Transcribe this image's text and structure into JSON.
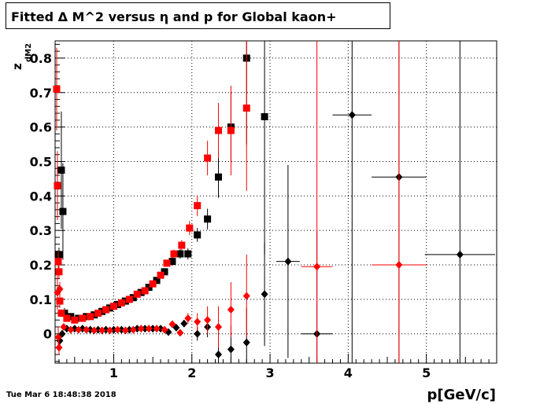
{
  "chart_data": {
    "type": "scatter",
    "title": "Fitted Δ M^2 versus η and p for Global kaon+",
    "xlabel": "p[GeV/c]",
    "ylabel": "z",
    "ylabel_exponent": "dM2",
    "xlim": [
      0.25,
      5.9
    ],
    "ylim": [
      -0.085,
      0.85
    ],
    "x_ticks": [
      1,
      2,
      3,
      4,
      5
    ],
    "y_ticks": [
      0,
      0.1,
      0.2,
      0.3,
      0.4,
      0.5,
      0.6,
      0.7,
      0.8
    ],
    "grid": true,
    "series": [
      {
        "marker": "square",
        "color": "#000000",
        "points": [
          {
            "x": 0.3,
            "y": 0.23,
            "e": 0.02
          },
          {
            "x": 0.33,
            "y": 0.475,
            "e": 0.17
          },
          {
            "x": 0.35,
            "y": 0.355,
            "e": 0.14
          },
          {
            "x": 0.37,
            "y": 0.06,
            "e": 0.015
          },
          {
            "x": 0.45,
            "y": 0.05,
            "e": 0.006
          },
          {
            "x": 0.55,
            "y": 0.045,
            "e": 0.005
          },
          {
            "x": 0.65,
            "y": 0.05,
            "e": 0.005
          },
          {
            "x": 0.75,
            "y": 0.055,
            "e": 0.005
          },
          {
            "x": 0.85,
            "y": 0.065,
            "e": 0.005
          },
          {
            "x": 0.95,
            "y": 0.075,
            "e": 0.005
          },
          {
            "x": 1.05,
            "y": 0.085,
            "e": 0.005
          },
          {
            "x": 1.15,
            "y": 0.095,
            "e": 0.005
          },
          {
            "x": 1.25,
            "y": 0.105,
            "e": 0.005
          },
          {
            "x": 1.35,
            "y": 0.12,
            "e": 0.006
          },
          {
            "x": 1.45,
            "y": 0.135,
            "e": 0.007
          },
          {
            "x": 1.55,
            "y": 0.155,
            "e": 0.008
          },
          {
            "x": 1.65,
            "y": 0.18,
            "e": 0.01
          },
          {
            "x": 1.75,
            "y": 0.21,
            "e": 0.012
          },
          {
            "x": 1.85,
            "y": 0.232,
            "e": 0.014
          },
          {
            "x": 1.95,
            "y": 0.232,
            "e": 0.016
          },
          {
            "x": 2.07,
            "y": 0.287,
            "e": 0.02
          },
          {
            "x": 2.2,
            "y": 0.333,
            "e": 0.03
          },
          {
            "x": 2.34,
            "y": 0.455,
            "e": 0.06
          },
          {
            "x": 2.5,
            "y": 0.6,
            "e": 0.1
          },
          {
            "x": 2.7,
            "y": 0.8,
            "e": 0.25
          },
          {
            "x": 2.93,
            "y": 0.63,
            "e": 0.4
          }
        ]
      },
      {
        "marker": "square",
        "color": "#ff0000",
        "points": [
          {
            "x": 0.27,
            "y": 0.71,
            "e": 0.12
          },
          {
            "x": 0.28,
            "y": 0.43,
            "e": 0.1
          },
          {
            "x": 0.29,
            "y": 0.21,
            "e": 0.03
          },
          {
            "x": 0.3,
            "y": 0.18,
            "e": 0.02
          },
          {
            "x": 0.31,
            "y": 0.095,
            "e": 0.02
          },
          {
            "x": 0.33,
            "y": 0.06,
            "e": 0.01
          },
          {
            "x": 0.4,
            "y": 0.045,
            "e": 0.005
          },
          {
            "x": 0.5,
            "y": 0.04,
            "e": 0.005
          },
          {
            "x": 0.6,
            "y": 0.045,
            "e": 0.005
          },
          {
            "x": 0.7,
            "y": 0.05,
            "e": 0.005
          },
          {
            "x": 0.8,
            "y": 0.06,
            "e": 0.005
          },
          {
            "x": 0.9,
            "y": 0.07,
            "e": 0.005
          },
          {
            "x": 1.0,
            "y": 0.08,
            "e": 0.005
          },
          {
            "x": 1.1,
            "y": 0.09,
            "e": 0.005
          },
          {
            "x": 1.2,
            "y": 0.1,
            "e": 0.005
          },
          {
            "x": 1.3,
            "y": 0.115,
            "e": 0.006
          },
          {
            "x": 1.4,
            "y": 0.125,
            "e": 0.007
          },
          {
            "x": 1.5,
            "y": 0.145,
            "e": 0.008
          },
          {
            "x": 1.6,
            "y": 0.17,
            "e": 0.009
          },
          {
            "x": 1.68,
            "y": 0.205,
            "e": 0.01
          },
          {
            "x": 1.77,
            "y": 0.232,
            "e": 0.012
          },
          {
            "x": 1.87,
            "y": 0.257,
            "e": 0.015
          },
          {
            "x": 1.97,
            "y": 0.307,
            "e": 0.02
          },
          {
            "x": 2.07,
            "y": 0.372,
            "e": 0.03
          },
          {
            "x": 2.2,
            "y": 0.51,
            "e": 0.05
          },
          {
            "x": 2.34,
            "y": 0.59,
            "e": 0.08
          },
          {
            "x": 2.5,
            "y": 0.59,
            "e": 0.13
          },
          {
            "x": 2.7,
            "y": 0.655,
            "e": 0.24
          }
        ]
      },
      {
        "marker": "diamond",
        "color": "#000000",
        "points": [
          {
            "x": 0.31,
            "y": -0.02,
            "e": 0.02
          },
          {
            "x": 0.34,
            "y": 0.0,
            "e": 0.01
          },
          {
            "x": 0.4,
            "y": 0.015,
            "e": 0.005
          },
          {
            "x": 0.5,
            "y": 0.015,
            "e": 0.004
          },
          {
            "x": 0.6,
            "y": 0.015,
            "e": 0.004
          },
          {
            "x": 0.7,
            "y": 0.012,
            "e": 0.004
          },
          {
            "x": 0.8,
            "y": 0.012,
            "e": 0.004
          },
          {
            "x": 0.9,
            "y": 0.012,
            "e": 0.004
          },
          {
            "x": 1.0,
            "y": 0.012,
            "e": 0.004
          },
          {
            "x": 1.1,
            "y": 0.012,
            "e": 0.004
          },
          {
            "x": 1.2,
            "y": 0.012,
            "e": 0.004
          },
          {
            "x": 1.3,
            "y": 0.015,
            "e": 0.004
          },
          {
            "x": 1.4,
            "y": 0.015,
            "e": 0.004
          },
          {
            "x": 1.5,
            "y": 0.015,
            "e": 0.005
          },
          {
            "x": 1.6,
            "y": 0.015,
            "e": 0.005
          },
          {
            "x": 1.7,
            "y": 0.005,
            "e": 0.006
          },
          {
            "x": 1.8,
            "y": 0.018,
            "e": 0.008
          },
          {
            "x": 1.9,
            "y": 0.03,
            "e": 0.01
          },
          {
            "x": 2.07,
            "y": 0.0,
            "e": 0.02
          },
          {
            "x": 2.2,
            "y": 0.02,
            "e": 0.03
          },
          {
            "x": 2.34,
            "y": -0.06,
            "e": 0.05
          },
          {
            "x": 2.5,
            "y": -0.045,
            "e": 0.07
          },
          {
            "x": 2.7,
            "y": -0.025,
            "e": 0.1
          },
          {
            "x": 2.93,
            "y": 0.115,
            "e": 0.15
          },
          {
            "x": 3.23,
            "y": 0.21,
            "e": 0.28,
            "xe": 0.15
          },
          {
            "x": 3.6,
            "y": 0.0,
            "e": 0.3,
            "xe": 0.2
          },
          {
            "x": 4.05,
            "y": 0.635,
            "e": 0.9,
            "xe": 0.25
          },
          {
            "x": 4.65,
            "y": 0.455,
            "e": 0.9,
            "xe": 0.35
          },
          {
            "x": 5.43,
            "y": 0.23,
            "e": 0.9,
            "xe": 0.45
          }
        ]
      },
      {
        "marker": "diamond",
        "color": "#ff0000",
        "points": [
          {
            "x": 0.28,
            "y": 0.12,
            "e": 0.05
          },
          {
            "x": 0.29,
            "y": -0.01,
            "e": 0.03
          },
          {
            "x": 0.3,
            "y": -0.04,
            "e": 0.02
          },
          {
            "x": 0.31,
            "y": 0.13,
            "e": 0.02
          },
          {
            "x": 0.32,
            "y": 0.06,
            "e": 0.01
          },
          {
            "x": 0.36,
            "y": 0.02,
            "e": 0.01
          },
          {
            "x": 0.45,
            "y": 0.012,
            "e": 0.004
          },
          {
            "x": 0.55,
            "y": 0.012,
            "e": 0.004
          },
          {
            "x": 0.65,
            "y": 0.012,
            "e": 0.004
          },
          {
            "x": 0.75,
            "y": 0.01,
            "e": 0.004
          },
          {
            "x": 0.85,
            "y": 0.01,
            "e": 0.004
          },
          {
            "x": 0.95,
            "y": 0.01,
            "e": 0.004
          },
          {
            "x": 1.05,
            "y": 0.012,
            "e": 0.004
          },
          {
            "x": 1.15,
            "y": 0.01,
            "e": 0.004
          },
          {
            "x": 1.25,
            "y": 0.012,
            "e": 0.004
          },
          {
            "x": 1.35,
            "y": 0.015,
            "e": 0.004
          },
          {
            "x": 1.45,
            "y": 0.015,
            "e": 0.005
          },
          {
            "x": 1.55,
            "y": 0.015,
            "e": 0.005
          },
          {
            "x": 1.65,
            "y": 0.012,
            "e": 0.006
          },
          {
            "x": 1.75,
            "y": 0.028,
            "e": 0.008
          },
          {
            "x": 1.85,
            "y": 0.003,
            "e": 0.01
          },
          {
            "x": 1.95,
            "y": 0.045,
            "e": 0.015
          },
          {
            "x": 2.07,
            "y": 0.035,
            "e": 0.025
          },
          {
            "x": 2.2,
            "y": 0.04,
            "e": 0.04
          },
          {
            "x": 2.34,
            "y": 0.02,
            "e": 0.06
          },
          {
            "x": 2.5,
            "y": 0.07,
            "e": 0.08
          },
          {
            "x": 2.7,
            "y": 0.11,
            "e": 0.12
          },
          {
            "x": 3.6,
            "y": 0.195,
            "e": 0.75,
            "xe": 0.2
          },
          {
            "x": 4.65,
            "y": 0.2,
            "e": 0.9,
            "xe": 0.35
          }
        ]
      }
    ]
  },
  "footer": {
    "timestamp": "Tue Mar  6 18:48:38 2018"
  }
}
